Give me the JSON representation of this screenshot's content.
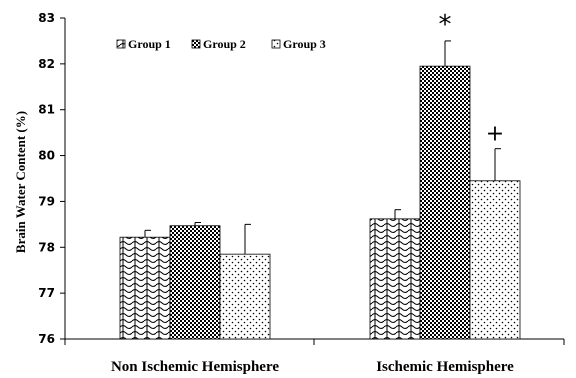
{
  "chart_data": {
    "type": "bar",
    "title": "",
    "xlabel": "",
    "ylabel": "Brain Water Content (%)",
    "ylim": [
      76,
      83
    ],
    "yticks": [
      "76",
      "77",
      "78",
      "79",
      "80",
      "81",
      "82",
      "83"
    ],
    "categories": [
      "Non Ischemic Hemisphere",
      "Ischemic Hemisphere"
    ],
    "series": [
      {
        "name": "Group 1",
        "values": [
          78.22,
          78.62
        ],
        "errors": [
          0.15,
          0.2
        ],
        "pattern": "waves",
        "mark": ""
      },
      {
        "name": "Group 2",
        "values": [
          78.47,
          81.95
        ],
        "errors": [
          0.07,
          0.55
        ],
        "pattern": "checker",
        "mark": "*"
      },
      {
        "name": "Group 3",
        "values": [
          77.85,
          79.45
        ],
        "errors": [
          0.65,
          0.7
        ],
        "pattern": "dots",
        "mark": "+"
      }
    ],
    "legend": "top-left",
    "grid": false
  }
}
